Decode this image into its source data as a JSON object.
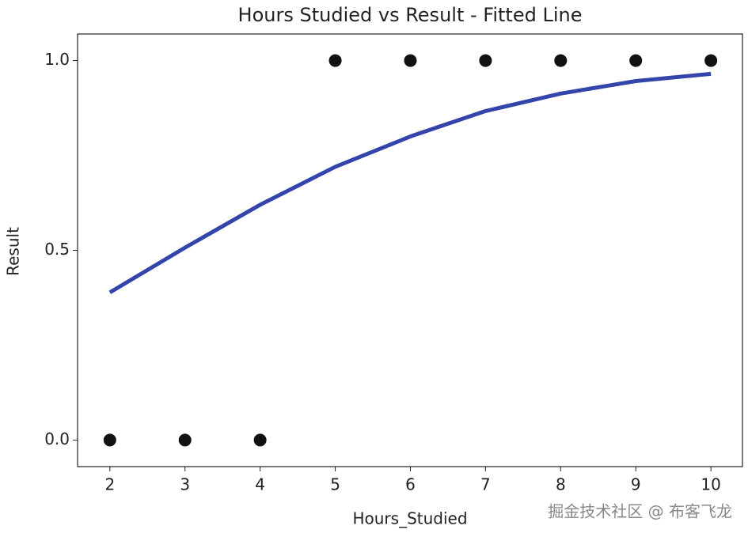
{
  "chart_data": {
    "type": "scatter",
    "title": "Hours Studied vs Result - Fitted Line",
    "x_label": "Hours_Studied",
    "y_label": "Result",
    "xlim": [
      1.57,
      10.42
    ],
    "ylim": [
      -0.07,
      1.07
    ],
    "xticks": [
      2,
      3,
      4,
      5,
      6,
      7,
      8,
      9,
      10
    ],
    "yticks": [
      {
        "value": 0,
        "label": "0.0"
      },
      {
        "value": 0.5,
        "label": "0.5"
      },
      {
        "value": 1,
        "label": "1.0"
      }
    ],
    "series": [
      {
        "type": "scatter",
        "color": "#111111",
        "x": [
          2,
          3,
          4,
          5,
          6,
          7,
          8,
          9,
          10
        ],
        "values": [
          0,
          0,
          0,
          1,
          1,
          1,
          1,
          1,
          1
        ]
      },
      {
        "type": "line",
        "color": "#3344aa",
        "x": [
          2,
          3,
          4,
          5,
          6,
          7,
          8,
          9,
          10
        ],
        "values": [
          0.389,
          0.507,
          0.62,
          0.72,
          0.8,
          0.867,
          0.913,
          0.946,
          0.965
        ]
      }
    ],
    "watermark": "掘金技术社区 @ 布客飞龙"
  }
}
